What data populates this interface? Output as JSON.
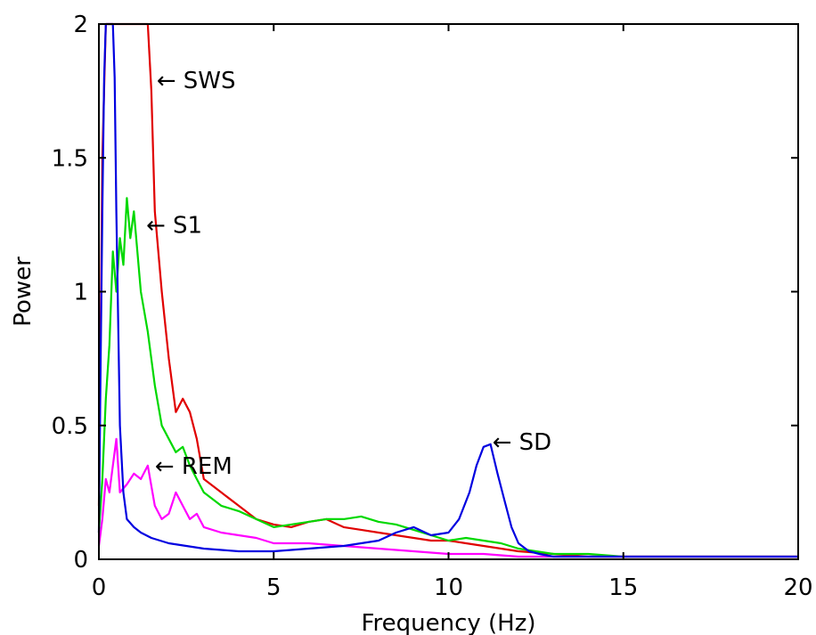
{
  "chart_data": {
    "type": "line",
    "xlabel": "Frequency (Hz)",
    "ylabel": "Power",
    "xlim": [
      0,
      20
    ],
    "ylim": [
      0,
      2
    ],
    "x_ticks": [
      "0",
      "5",
      "10",
      "15",
      "20"
    ],
    "y_ticks": [
      "0",
      "0.5",
      "1",
      "1.5",
      "2"
    ],
    "grid": false,
    "series": [
      {
        "name": "SWS",
        "color": "#e00000",
        "x": [
          0,
          0.1,
          0.2,
          0.3,
          0.4,
          0.5,
          0.6,
          0.8,
          1.0,
          1.2,
          1.4,
          1.5,
          1.6,
          1.8,
          2.0,
          2.2,
          2.4,
          2.6,
          2.8,
          3.0,
          3.5,
          4.0,
          4.5,
          5.0,
          5.5,
          6.0,
          6.5,
          7.0,
          7.5,
          8.0,
          8.5,
          9.0,
          9.5,
          10.0,
          10.5,
          11.0,
          11.5,
          12.0,
          13.0,
          14.0,
          15.0,
          16.0,
          17.0,
          18.0,
          19.0,
          20.0
        ],
        "y": [
          0.2,
          1.5,
          2.0,
          2.0,
          2.0,
          2.0,
          2.0,
          2.0,
          2.0,
          2.0,
          2.0,
          1.75,
          1.3,
          1.0,
          0.75,
          0.55,
          0.6,
          0.55,
          0.45,
          0.3,
          0.25,
          0.2,
          0.15,
          0.13,
          0.12,
          0.14,
          0.15,
          0.12,
          0.11,
          0.1,
          0.09,
          0.08,
          0.07,
          0.07,
          0.06,
          0.05,
          0.04,
          0.03,
          0.02,
          0.01,
          0.01,
          0.01,
          0.01,
          0.01,
          0.01,
          0.01
        ]
      },
      {
        "name": "S1",
        "color": "#00d800",
        "x": [
          0,
          0.1,
          0.2,
          0.3,
          0.4,
          0.5,
          0.6,
          0.7,
          0.8,
          0.9,
          1.0,
          1.2,
          1.4,
          1.6,
          1.8,
          2.0,
          2.2,
          2.4,
          2.6,
          2.8,
          3.0,
          3.5,
          4.0,
          4.5,
          5.0,
          5.5,
          6.0,
          6.5,
          7.0,
          7.5,
          8.0,
          8.5,
          9.0,
          9.5,
          10.0,
          10.5,
          11.0,
          11.5,
          12.0,
          12.5,
          13.0,
          14.0,
          15.0,
          16.0,
          17.0,
          18.0,
          19.0,
          20.0
        ],
        "y": [
          0.1,
          0.3,
          0.6,
          0.8,
          1.15,
          1.0,
          1.2,
          1.1,
          1.35,
          1.2,
          1.3,
          1.0,
          0.85,
          0.65,
          0.5,
          0.45,
          0.4,
          0.42,
          0.35,
          0.3,
          0.25,
          0.2,
          0.18,
          0.15,
          0.12,
          0.13,
          0.14,
          0.15,
          0.15,
          0.16,
          0.14,
          0.13,
          0.11,
          0.09,
          0.07,
          0.08,
          0.07,
          0.06,
          0.04,
          0.03,
          0.02,
          0.02,
          0.01,
          0.01,
          0.01,
          0.01,
          0.01,
          0.01
        ]
      },
      {
        "name": "REM",
        "color": "#ff00ff",
        "x": [
          0,
          0.1,
          0.2,
          0.3,
          0.4,
          0.5,
          0.6,
          0.8,
          1.0,
          1.2,
          1.4,
          1.6,
          1.8,
          2.0,
          2.2,
          2.4,
          2.6,
          2.8,
          3.0,
          3.5,
          4.0,
          4.5,
          5.0,
          6.0,
          7.0,
          8.0,
          9.0,
          10.0,
          11.0,
          12.0,
          13.0,
          14.0,
          15.0,
          16.0,
          17.0,
          18.0,
          19.0,
          20.0
        ],
        "y": [
          0.05,
          0.15,
          0.3,
          0.25,
          0.35,
          0.45,
          0.25,
          0.28,
          0.32,
          0.3,
          0.35,
          0.2,
          0.15,
          0.17,
          0.25,
          0.2,
          0.15,
          0.17,
          0.12,
          0.1,
          0.09,
          0.08,
          0.06,
          0.06,
          0.05,
          0.04,
          0.03,
          0.02,
          0.02,
          0.01,
          0.01,
          0.01,
          0.01,
          0.01,
          0.01,
          0.01,
          0.01,
          0.01
        ]
      },
      {
        "name": "SD",
        "color": "#0000e0",
        "x": [
          0,
          0.05,
          0.1,
          0.15,
          0.2,
          0.25,
          0.3,
          0.35,
          0.4,
          0.45,
          0.5,
          0.6,
          0.7,
          0.8,
          1.0,
          1.2,
          1.5,
          2.0,
          2.5,
          3.0,
          4.0,
          5.0,
          6.0,
          7.0,
          8.0,
          8.5,
          9.0,
          9.5,
          10.0,
          10.3,
          10.6,
          10.8,
          11.0,
          11.2,
          11.4,
          11.6,
          11.8,
          12.0,
          12.3,
          12.6,
          13.0,
          14.0,
          15.0,
          16.0,
          17.0,
          18.0,
          19.0,
          20.0
        ],
        "y": [
          0.1,
          0.75,
          1.3,
          1.8,
          2.0,
          2.0,
          2.0,
          2.0,
          2.0,
          1.8,
          1.3,
          0.5,
          0.25,
          0.15,
          0.12,
          0.1,
          0.08,
          0.06,
          0.05,
          0.04,
          0.03,
          0.03,
          0.04,
          0.05,
          0.07,
          0.1,
          0.12,
          0.09,
          0.1,
          0.15,
          0.25,
          0.35,
          0.42,
          0.43,
          0.32,
          0.22,
          0.12,
          0.06,
          0.03,
          0.02,
          0.01,
          0.01,
          0.01,
          0.01,
          0.01,
          0.01,
          0.01,
          0.01
        ]
      }
    ],
    "annotations": [
      {
        "text": "← SWS",
        "x": 1.65,
        "y": 1.79
      },
      {
        "text": "← S1",
        "x": 1.35,
        "y": 1.25
      },
      {
        "text": "← REM",
        "x": 1.6,
        "y": 0.35
      },
      {
        "text": "← SD",
        "x": 11.25,
        "y": 0.44
      }
    ]
  }
}
